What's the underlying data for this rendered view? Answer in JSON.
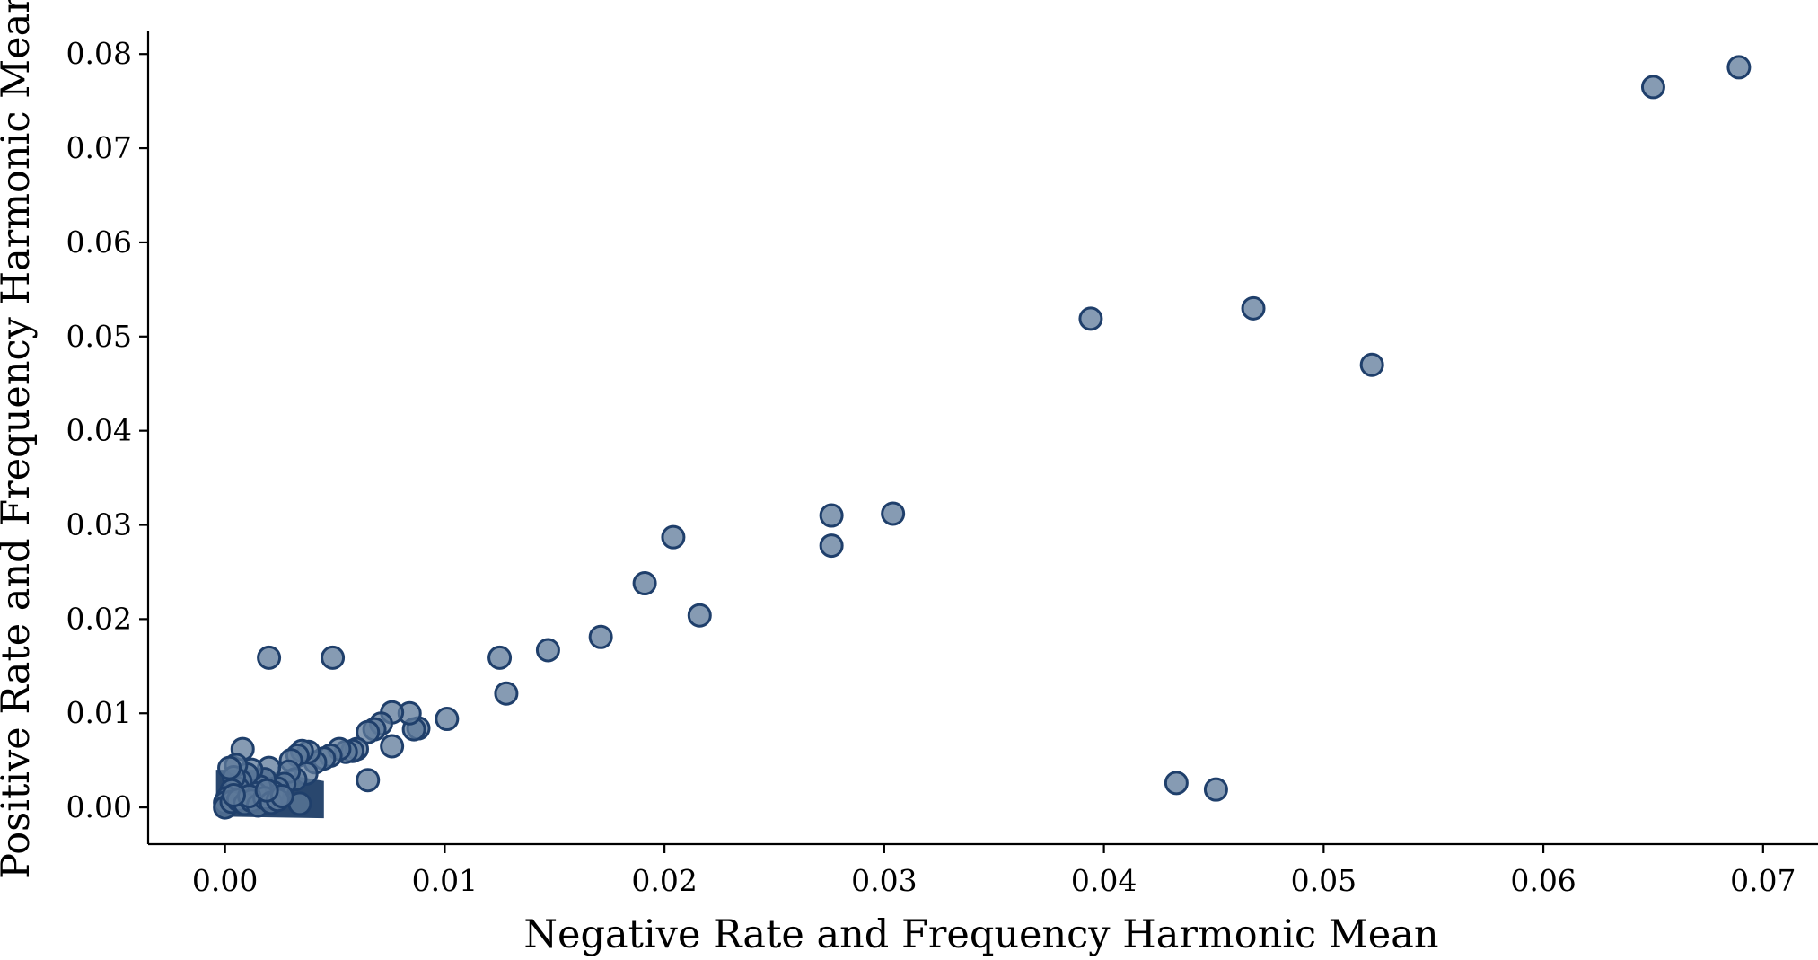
{
  "chart_data": {
    "type": "scatter",
    "xlabel": "Negative Rate and Frequency Harmonic Mean",
    "ylabel": "Positive Rate and Frequency Harmonic Mean",
    "xlim": [
      -0.0035,
      0.0725
    ],
    "ylim": [
      -0.0039,
      0.0825
    ],
    "xticks": [
      0.0,
      0.01,
      0.02,
      0.03,
      0.04,
      0.05,
      0.06,
      0.07
    ],
    "xtick_labels": [
      "0.00",
      "0.01",
      "0.02",
      "0.03",
      "0.04",
      "0.05",
      "0.06",
      "0.07"
    ],
    "yticks": [
      0.0,
      0.01,
      0.02,
      0.03,
      0.04,
      0.05,
      0.06,
      0.07,
      0.08
    ],
    "ytick_labels": [
      "0.00",
      "0.01",
      "0.02",
      "0.03",
      "0.04",
      "0.05",
      "0.06",
      "0.07",
      "0.08"
    ],
    "grid": false,
    "colors": {
      "marker_fill": "#5d7a99",
      "marker_edge": "#1f3f6b",
      "dense_fill": "#12335e"
    },
    "series": [
      {
        "points": [
          [
            0.0689,
            0.0786
          ],
          [
            0.065,
            0.0765
          ],
          [
            0.0394,
            0.0519
          ],
          [
            0.0468,
            0.053
          ],
          [
            0.0522,
            0.047
          ],
          [
            0.0304,
            0.0312
          ],
          [
            0.0276,
            0.031
          ],
          [
            0.0276,
            0.0278
          ],
          [
            0.0204,
            0.0287
          ],
          [
            0.0191,
            0.0238
          ],
          [
            0.0216,
            0.0204
          ],
          [
            0.0171,
            0.0181
          ],
          [
            0.0147,
            0.0167
          ],
          [
            0.0125,
            0.0159
          ],
          [
            0.0128,
            0.0121
          ],
          [
            0.0101,
            0.0094
          ],
          [
            0.0088,
            0.0084
          ],
          [
            0.0086,
            0.0083
          ],
          [
            0.0084,
            0.01
          ],
          [
            0.0076,
            0.0101
          ],
          [
            0.0076,
            0.0065
          ],
          [
            0.0071,
            0.0089
          ],
          [
            0.0068,
            0.0083
          ],
          [
            0.0065,
            0.008
          ],
          [
            0.0065,
            0.0029
          ],
          [
            0.006,
            0.0062
          ],
          [
            0.0058,
            0.006
          ],
          [
            0.0055,
            0.0059
          ],
          [
            0.0052,
            0.0062
          ],
          [
            0.0048,
            0.0055
          ],
          [
            0.0045,
            0.0052
          ],
          [
            0.0041,
            0.0048
          ],
          [
            0.0038,
            0.0059
          ],
          [
            0.0035,
            0.006
          ],
          [
            0.0033,
            0.0055
          ],
          [
            0.003,
            0.005
          ],
          [
            0.0034,
            0.0004
          ],
          [
            0.0037,
            0.0036
          ],
          [
            0.0032,
            0.003
          ],
          [
            0.0029,
            0.0038
          ],
          [
            0.0027,
            0.0025
          ],
          [
            0.0024,
            0.002
          ],
          [
            0.0022,
            0.0016
          ],
          [
            0.002,
            0.0042
          ],
          [
            0.0018,
            0.003
          ],
          [
            0.0016,
            0.0022
          ],
          [
            0.0014,
            0.0015
          ],
          [
            0.0012,
            0.004
          ],
          [
            0.001,
            0.0035
          ],
          [
            0.0008,
            0.0062
          ],
          [
            0.0007,
            0.0028
          ],
          [
            0.0006,
            0.002
          ],
          [
            0.0005,
            0.0045
          ],
          [
            0.0004,
            0.0032
          ],
          [
            0.0003,
            0.0018
          ],
          [
            0.0002,
            0.0042
          ],
          [
            0.0001,
            0.001
          ],
          [
            0.0,
            0.0005
          ],
          [
            0.0,
            0.0
          ],
          [
            0.0003,
            0.0006
          ],
          [
            0.0006,
            0.0008
          ],
          [
            0.0009,
            0.0004
          ],
          [
            0.0012,
            0.0007
          ],
          [
            0.0015,
            0.0002
          ],
          [
            0.0018,
            0.001
          ],
          [
            0.0021,
            0.0005
          ],
          [
            0.0024,
            0.0008
          ],
          [
            0.0026,
            0.0012
          ],
          [
            0.0011,
            0.0012
          ],
          [
            0.0004,
            0.0013
          ],
          [
            0.0019,
            0.0018
          ],
          [
            0.002,
            0.0159
          ],
          [
            0.0049,
            0.0159
          ],
          [
            0.0433,
            0.0026
          ],
          [
            0.0451,
            0.0019
          ]
        ]
      }
    ]
  }
}
